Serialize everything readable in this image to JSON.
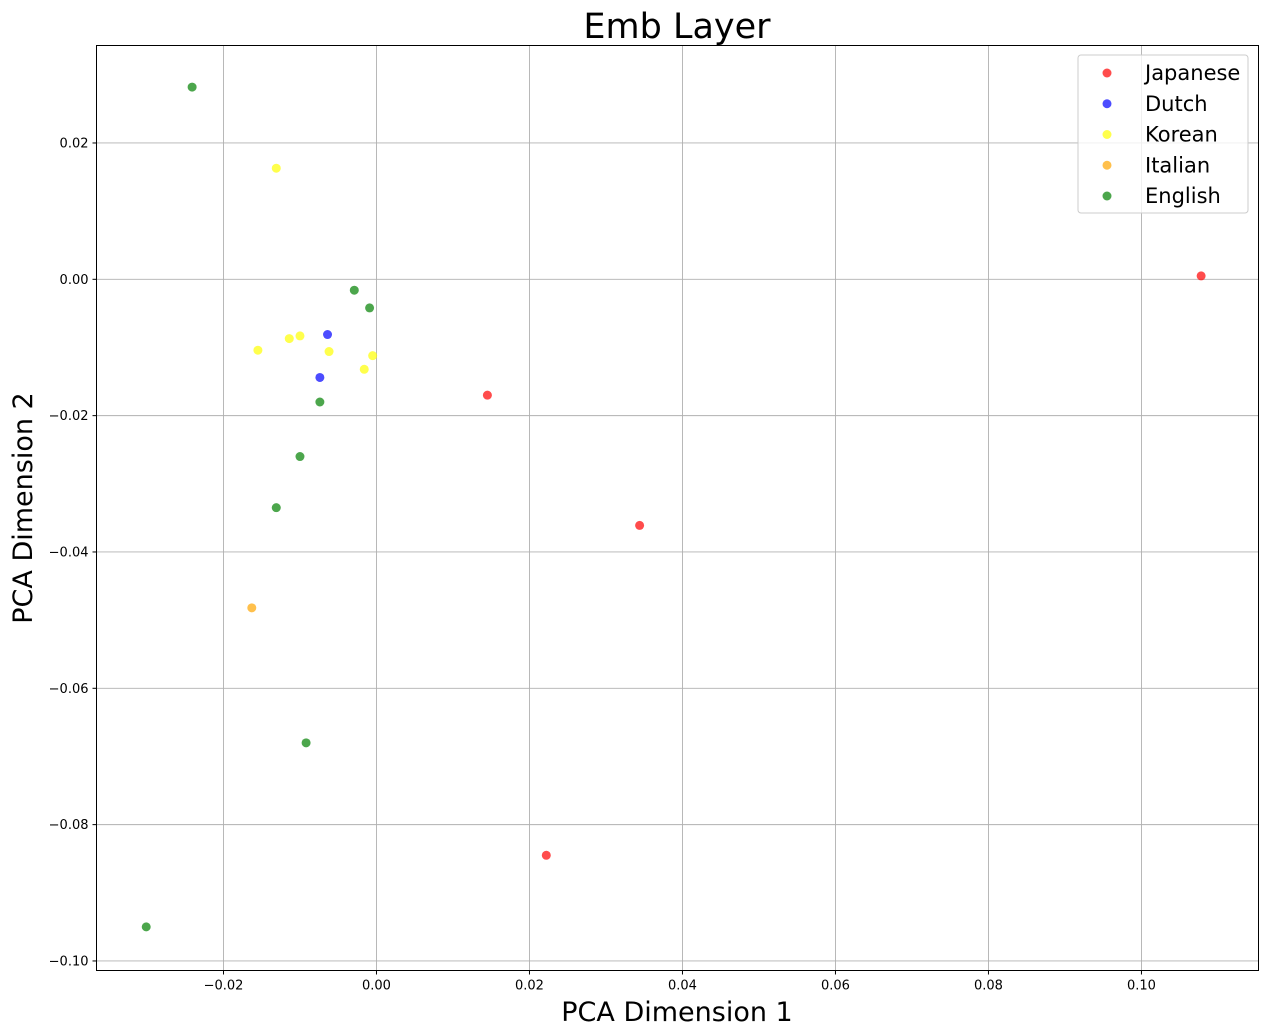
{
  "chart_data": {
    "type": "scatter",
    "title": "Emb Layer",
    "xlabel": "PCA Dimension 1",
    "ylabel": "PCA Dimension 2",
    "xlim": [
      -0.0366,
      0.1153
    ],
    "ylim": [
      -0.1014,
      0.0343
    ],
    "xticks": [
      -0.02,
      0.0,
      0.02,
      0.04,
      0.06,
      0.08,
      0.1
    ],
    "xtick_labels": [
      "−0.02",
      "0.00",
      "0.02",
      "0.04",
      "0.06",
      "0.08",
      "0.10"
    ],
    "yticks": [
      0.02,
      0.0,
      -0.02,
      -0.04,
      -0.06,
      -0.08,
      -0.1
    ],
    "ytick_labels": [
      "0.02",
      "0.00",
      "−0.02",
      "−0.04",
      "−0.06",
      "−0.08",
      "−0.10"
    ],
    "grid": true,
    "legend_position": "top-right",
    "series": [
      {
        "name": "Japanese",
        "color": "#ff0000",
        "points": [
          [
            0.1078,
            0.0005
          ],
          [
            0.0145,
            -0.017
          ],
          [
            0.0344,
            -0.0361
          ],
          [
            0.0222,
            -0.0845
          ]
        ]
      },
      {
        "name": "Dutch",
        "color": "#0000ff",
        "points": [
          [
            -0.0064,
            -0.0081
          ],
          [
            -0.0074,
            -0.0144
          ]
        ]
      },
      {
        "name": "Korean",
        "color": "#ffff00",
        "points": [
          [
            -0.0131,
            0.0163
          ],
          [
            -0.0155,
            -0.0104
          ],
          [
            -0.0114,
            -0.0087
          ],
          [
            -0.01,
            -0.0083
          ],
          [
            -0.0062,
            -0.0106
          ],
          [
            -0.0016,
            -0.0132
          ],
          [
            -0.0005,
            -0.0112
          ]
        ]
      },
      {
        "name": "Italian",
        "color": "#ffa500",
        "points": [
          [
            -0.0163,
            -0.0482
          ]
        ]
      },
      {
        "name": "English",
        "color": "#008000",
        "points": [
          [
            -0.0241,
            0.0282
          ],
          [
            -0.0029,
            -0.0016
          ],
          [
            -0.0009,
            -0.0042
          ],
          [
            -0.0074,
            -0.018
          ],
          [
            -0.01,
            -0.026
          ],
          [
            -0.0131,
            -0.0335
          ],
          [
            -0.0092,
            -0.068
          ],
          [
            -0.0301,
            -0.095
          ]
        ]
      }
    ]
  }
}
